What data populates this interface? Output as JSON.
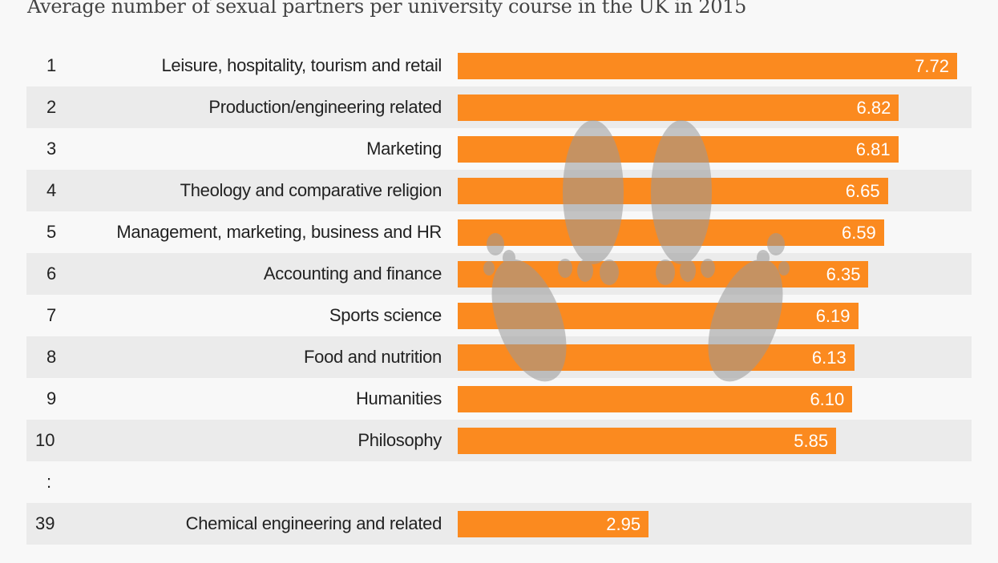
{
  "chart_data": {
    "type": "bar",
    "orientation": "horizontal",
    "title": "Average number of sexual partners per university course in the UK in 2015",
    "rows": [
      {
        "rank": "1",
        "category": "Leisure, hospitality, tourism and retail",
        "value": 7.72,
        "label": "7.72"
      },
      {
        "rank": "2",
        "category": "Production/engineering related",
        "value": 6.82,
        "label": "6.82"
      },
      {
        "rank": "3",
        "category": "Marketing",
        "value": 6.81,
        "label": "6.81"
      },
      {
        "rank": "4",
        "category": "Theology and comparative religion",
        "value": 6.65,
        "label": "6.65"
      },
      {
        "rank": "5",
        "category": "Management, marketing, business and HR",
        "value": 6.59,
        "label": "6.59"
      },
      {
        "rank": "6",
        "category": "Accounting and finance",
        "value": 6.35,
        "label": "6.35"
      },
      {
        "rank": "7",
        "category": "Sports science",
        "value": 6.19,
        "label": "6.19"
      },
      {
        "rank": "8",
        "category": "Food and nutrition",
        "value": 6.13,
        "label": "6.13"
      },
      {
        "rank": "9",
        "category": "Humanities",
        "value": 6.1,
        "label": "6.10"
      },
      {
        "rank": "10",
        "category": "Philosophy",
        "value": 5.85,
        "label": "5.85"
      },
      {
        "rank": ":",
        "category": "",
        "value": null,
        "label": ""
      },
      {
        "rank": "39",
        "category": "Chemical engineering and related",
        "value": 2.95,
        "label": "2.95"
      }
    ],
    "xlim": [
      0,
      7.72
    ],
    "grid": false,
    "bar_color": "#fb8a1f",
    "stripe_color": "#ebebeb",
    "watermark_icon": "footprints-icon"
  }
}
